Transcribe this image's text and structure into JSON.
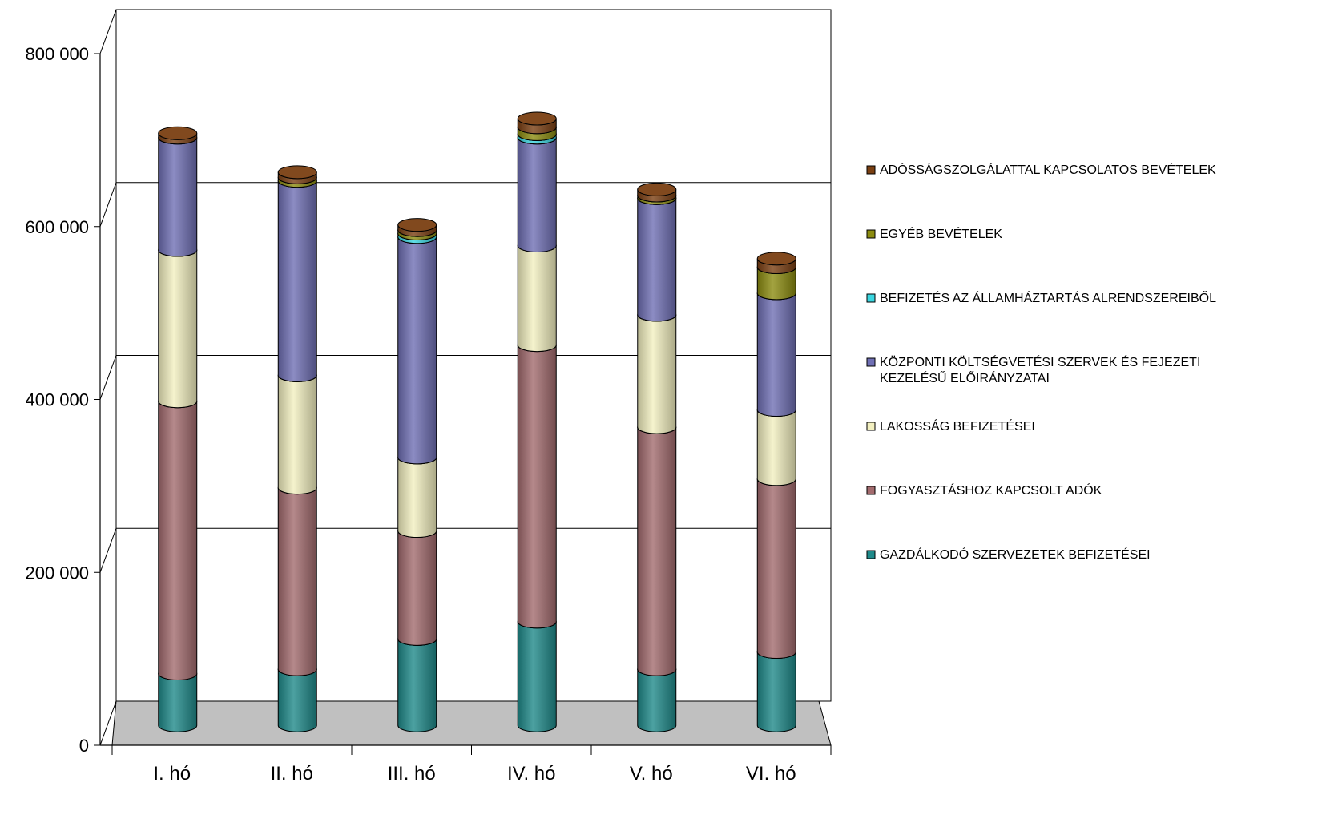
{
  "chart_data": {
    "type": "bar",
    "stacked": true,
    "style": "3d-cylinder",
    "title": "",
    "xlabel": "",
    "ylabel": "",
    "ylim": [
      0,
      800000
    ],
    "yticks": [
      0,
      200000,
      400000,
      600000,
      800000
    ],
    "ytick_labels": [
      "0",
      "200 000",
      "400 000",
      "600 000",
      "800 000"
    ],
    "grid": true,
    "legend_position": "right",
    "categories": [
      "I. hó",
      "II. hó",
      "III. hó",
      "IV. hó",
      "V. hó",
      "VI. hó"
    ],
    "series": [
      {
        "name": "GAZDÁLKODÓ SZERVEZETEK BEFIZETÉSEI",
        "color": "#1f8a8a",
        "values": [
          60000,
          65000,
          100000,
          120000,
          65000,
          85000
        ]
      },
      {
        "name": "FOGYASZTÁSHOZ KAPCSOLT ADÓK",
        "color": "#a36b6e",
        "values": [
          315000,
          210000,
          125000,
          320000,
          280000,
          200000
        ]
      },
      {
        "name": "LAKOSSÁG BEFIZETÉSEI",
        "color": "#f3f0c0",
        "values": [
          175000,
          130000,
          85000,
          115000,
          130000,
          80000
        ]
      },
      {
        "name": "KÖZPONTI KÖLTSÉGVETÉSI SZERVEK ÉS FEJEZETI KEZELÉSŰ ELŐIRÁNYZATAI",
        "color": "#6f6fb4",
        "values": [
          130000,
          225000,
          255000,
          125000,
          135000,
          135000
        ]
      },
      {
        "name": "BEFIZETÉS AZ ÁLLAMHÁZTARTÁS ALRENDSZEREIBŐL",
        "color": "#3ad6e0",
        "values": [
          0,
          0,
          4000,
          4000,
          0,
          0
        ]
      },
      {
        "name": "EGYÉB BEVÉTELEK",
        "color": "#8c8c10",
        "values": [
          0,
          4000,
          4000,
          8000,
          3000,
          30000
        ]
      },
      {
        "name": "ADÓSSÁGSZOLGÁLATTAL KAPCSOLATOS BEVÉTELEK",
        "color": "#7a3f12",
        "values": [
          5000,
          6000,
          6000,
          10000,
          7000,
          10000
        ]
      }
    ],
    "legend_order": [
      6,
      5,
      4,
      3,
      2,
      1,
      0
    ],
    "legend_lines": {
      "3": [
        "KÖZPONTI KÖLTSÉGVETÉSI SZERVEK ÉS FEJEZETI",
        "KEZELÉSŰ ELŐIRÁNYZATAI"
      ]
    },
    "floor_color": "#c0c0c0"
  }
}
